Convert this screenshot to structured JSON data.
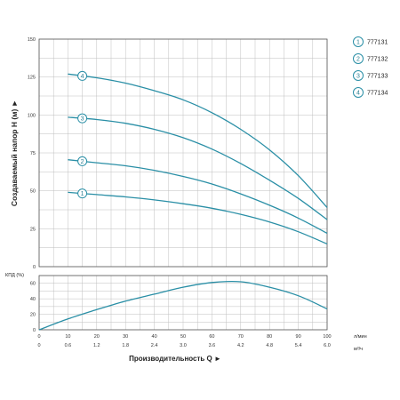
{
  "chart_data": [
    {
      "type": "line",
      "ylabel": "Создаваемый напор Н (м) ►",
      "xlim": [
        0,
        100
      ],
      "ylim": [
        0,
        150
      ],
      "y_ticks": [
        0,
        25,
        50,
        75,
        100,
        125,
        150
      ],
      "grid": true,
      "line_color": "#2a8fa6",
      "series": [
        {
          "name": "1",
          "x": [
            10,
            20,
            30,
            40,
            50,
            60,
            70,
            80,
            90,
            100
          ],
          "y": [
            49,
            47.5,
            46,
            44,
            41.5,
            38.5,
            34.5,
            29.5,
            23,
            15
          ]
        },
        {
          "name": "2",
          "x": [
            10,
            20,
            30,
            40,
            50,
            60,
            70,
            80,
            90,
            100
          ],
          "y": [
            70.5,
            68.5,
            66.5,
            63.5,
            59.5,
            54.5,
            48,
            40.5,
            32,
            22
          ]
        },
        {
          "name": "3",
          "x": [
            10,
            20,
            30,
            40,
            50,
            60,
            70,
            80,
            90,
            100
          ],
          "y": [
            98.5,
            97,
            94.5,
            90.5,
            85,
            77.5,
            68,
            57,
            45,
            31
          ]
        },
        {
          "name": "4",
          "x": [
            10,
            20,
            30,
            40,
            50,
            60,
            70,
            80,
            90,
            100
          ],
          "y": [
            127,
            124.5,
            121,
            116,
            110,
            101.5,
            90.5,
            77,
            60,
            39
          ]
        }
      ],
      "legend": {
        "placement": "right",
        "items": [
          {
            "num": "1",
            "label": "777131"
          },
          {
            "num": "2",
            "label": "777132"
          },
          {
            "num": "3",
            "label": "777133"
          },
          {
            "num": "4",
            "label": "777134"
          }
        ]
      }
    },
    {
      "type": "line",
      "ylabel": "КПД (%)",
      "xlim": [
        0,
        100
      ],
      "ylim": [
        0,
        70
      ],
      "y_ticks": [
        0,
        20,
        40,
        60
      ],
      "grid": true,
      "line_color": "#2a8fa6",
      "series": [
        {
          "x": [
            0,
            10,
            20,
            30,
            40,
            50,
            60,
            70,
            80,
            90,
            100
          ],
          "y": [
            0,
            14,
            26,
            37,
            46,
            55,
            61,
            62,
            55,
            44,
            27
          ]
        }
      ],
      "x_ticks_lpm": [
        "0",
        "10",
        "20",
        "30",
        "40",
        "50",
        "60",
        "70",
        "80",
        "90",
        "100"
      ],
      "x_ticks_m3h": [
        "0",
        "0.6",
        "1.2",
        "1.8",
        "2.4",
        "3.0",
        "3.6",
        "4.2",
        "4.8",
        "5.4",
        "6.0"
      ],
      "unit_lpm": "л/мин",
      "unit_m3h": "м³/ч",
      "xlabel": "Производительность Q ►"
    }
  ]
}
